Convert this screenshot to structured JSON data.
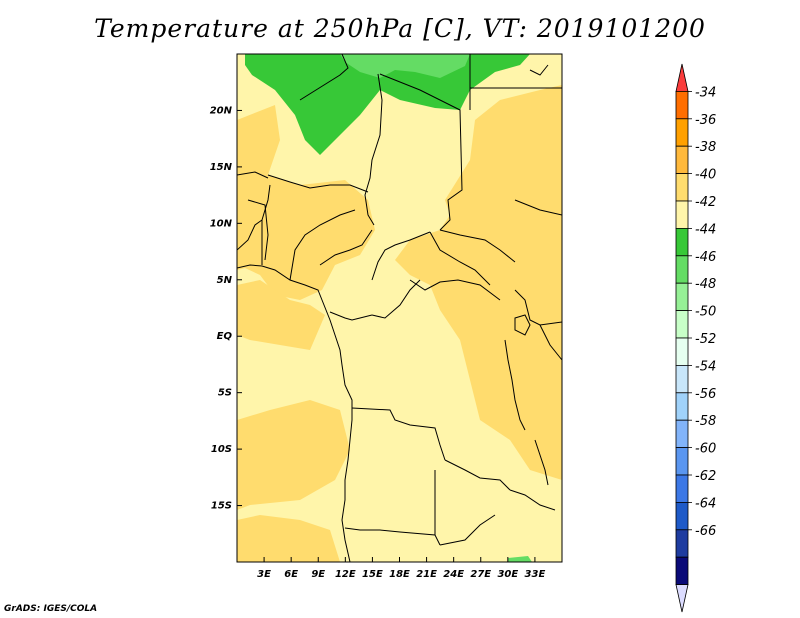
{
  "title": "Temperature at 250hPa [C], VT: 2019101200",
  "credit": "GrADS: IGES/COLA",
  "map": {
    "lon_range": [
      0,
      36
    ],
    "lat_range": [
      -20,
      25
    ],
    "lon_ticks": [
      {
        "value": 3,
        "label": "3E"
      },
      {
        "value": 6,
        "label": "6E"
      },
      {
        "value": 9,
        "label": "9E"
      },
      {
        "value": 12,
        "label": "12E"
      },
      {
        "value": 15,
        "label": "15E"
      },
      {
        "value": 18,
        "label": "18E"
      },
      {
        "value": 21,
        "label": "21E"
      },
      {
        "value": 24,
        "label": "24E"
      },
      {
        "value": 27,
        "label": "27E"
      },
      {
        "value": 30,
        "label": "30E"
      },
      {
        "value": 33,
        "label": "33E"
      }
    ],
    "lat_ticks": [
      {
        "value": 20,
        "label": "20N"
      },
      {
        "value": 15,
        "label": "15N"
      },
      {
        "value": 10,
        "label": "10N"
      },
      {
        "value": 5,
        "label": "5N"
      },
      {
        "value": 0,
        "label": "EQ"
      },
      {
        "value": -5,
        "label": "5S"
      },
      {
        "value": -10,
        "label": "10S"
      },
      {
        "value": -15,
        "label": "15S"
      }
    ]
  },
  "colorbar": {
    "colors": [
      "#fa3c3c",
      "#ff6e00",
      "#ffa000",
      "#ffb93c",
      "#ffdc6e",
      "#fff5aa",
      "#37c837",
      "#64dc64",
      "#96f096",
      "#c8ffc8",
      "#e6fff0",
      "#c8e6fa",
      "#a0d2fa",
      "#82b4fa",
      "#5a96f0",
      "#3c78e6",
      "#1e5ac8",
      "#1e3ca0",
      "#0a0a78",
      "#dcdcff"
    ],
    "labels": [
      "-34",
      "-36",
      "-38",
      "-40",
      "-42",
      "-44",
      "-46",
      "-48",
      "-50",
      "-52",
      "-54",
      "-56",
      "-58",
      "-60",
      "-62",
      "-64",
      "-66"
    ]
  }
}
